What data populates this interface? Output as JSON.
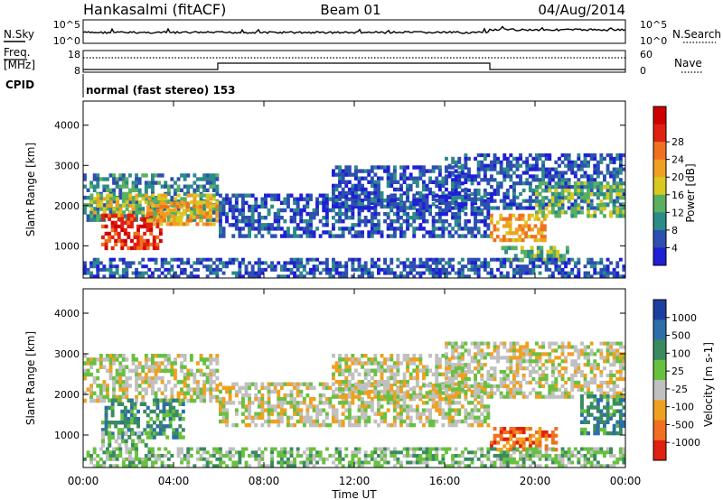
{
  "header": {
    "station": "Hankasalmi (fitACF)",
    "beam": "Beam 01",
    "date": "04/Aug/2014"
  },
  "noise_panel": {
    "left_label": "N.Sky",
    "right_label": "N.Search",
    "left_ticks": [
      "10^5",
      "10^0"
    ],
    "right_ticks": [
      "10^5",
      "10^0"
    ]
  },
  "freq_panel": {
    "label_line1": "Freq.",
    "label_line2": "[MHz]",
    "left_ticks": [
      "18",
      "8"
    ],
    "right_ticks": [
      "60",
      "0"
    ],
    "right_label": "Nave"
  },
  "cpid": {
    "label": "CPID",
    "text": "normal (fast stereo) 153"
  },
  "axes": {
    "ylabel": "Slant Range [km]",
    "xlabel": "Time UT",
    "yticks": [
      "1000",
      "2000",
      "3000",
      "4000"
    ],
    "xticks": [
      "00:00",
      "04:00",
      "08:00",
      "12:00",
      "16:00",
      "20:00",
      "00:00"
    ]
  },
  "chart_data": [
    {
      "type": "heatmap",
      "name": "power",
      "x_hours": [
        0,
        4,
        8,
        12,
        16,
        20,
        24
      ],
      "ylim": [
        200,
        4600
      ],
      "colorbar_label": "Power [dB]",
      "colorbar_ticks": [
        "4",
        "8",
        "12",
        "16",
        "20",
        "24",
        "28"
      ],
      "colors": [
        "#1f1fd6",
        "#2d4fb0",
        "#2d8a8a",
        "#58b060",
        "#d8c820",
        "#f0a020",
        "#f07020",
        "#e02010",
        "#d00000"
      ],
      "regions": [
        {
          "t0": 0.0,
          "t1": 6.0,
          "r0": 1600,
          "r1": 2800,
          "level": 2
        },
        {
          "t0": 0.3,
          "t1": 6.0,
          "r0": 1700,
          "r1": 2300,
          "level": 4
        },
        {
          "t0": 0.8,
          "t1": 3.5,
          "r0": 900,
          "r1": 1800,
          "level": 7
        },
        {
          "t0": 2.8,
          "t1": 6.0,
          "r0": 1500,
          "r1": 2100,
          "level": 5
        },
        {
          "t0": 6.0,
          "t1": 18.0,
          "r0": 1200,
          "r1": 2300,
          "level": 1
        },
        {
          "t0": 11.0,
          "t1": 17.0,
          "r0": 1900,
          "r1": 3000,
          "level": 1
        },
        {
          "t0": 16.0,
          "t1": 24.0,
          "r0": 1900,
          "r1": 3300,
          "level": 1
        },
        {
          "t0": 18.0,
          "t1": 20.5,
          "r0": 1100,
          "r1": 1800,
          "level": 5
        },
        {
          "t0": 20.0,
          "t1": 24.0,
          "r0": 1700,
          "r1": 2600,
          "level": 3
        },
        {
          "t0": 18.5,
          "t1": 21.5,
          "r0": 600,
          "r1": 1000,
          "level": 3
        },
        {
          "t0": 0.0,
          "t1": 24.0,
          "r0": 200,
          "r1": 700,
          "level": 1
        }
      ]
    },
    {
      "type": "heatmap",
      "name": "velocity",
      "x_hours": [
        0,
        4,
        8,
        12,
        16,
        20,
        24
      ],
      "ylim": [
        200,
        4600
      ],
      "colorbar_label": "Velocity [m s-1]",
      "colorbar_ticks": [
        "1000",
        "500",
        "100",
        "25",
        "-25",
        "-100",
        "-500",
        "-1000"
      ],
      "colors": [
        "#1a3fa0",
        "#2d6ea8",
        "#3a8a60",
        "#68c040",
        "#c0c0c0",
        "#f0a020",
        "#f07020",
        "#e02010"
      ],
      "regions": [
        {
          "t0": 0.0,
          "t1": 6.0,
          "r0": 1800,
          "r1": 3000,
          "level": 4
        },
        {
          "t0": 0.8,
          "t1": 4.5,
          "r0": 900,
          "r1": 1900,
          "level": 2
        },
        {
          "t0": 0.8,
          "t1": 3.0,
          "r0": 700,
          "r1": 1100,
          "level": 3
        },
        {
          "t0": 6.0,
          "t1": 18.0,
          "r0": 1200,
          "r1": 2300,
          "level": 4
        },
        {
          "t0": 11.0,
          "t1": 17.0,
          "r0": 1900,
          "r1": 3000,
          "level": 4
        },
        {
          "t0": 16.0,
          "t1": 24.0,
          "r0": 1900,
          "r1": 3300,
          "level": 4
        },
        {
          "t0": 18.0,
          "t1": 21.0,
          "r0": 600,
          "r1": 1200,
          "level": 6
        },
        {
          "t0": 22.0,
          "t1": 24.0,
          "r0": 1000,
          "r1": 2000,
          "level": 2
        },
        {
          "t0": 0.0,
          "t1": 24.0,
          "r0": 200,
          "r1": 700,
          "level": 3
        }
      ]
    }
  ]
}
